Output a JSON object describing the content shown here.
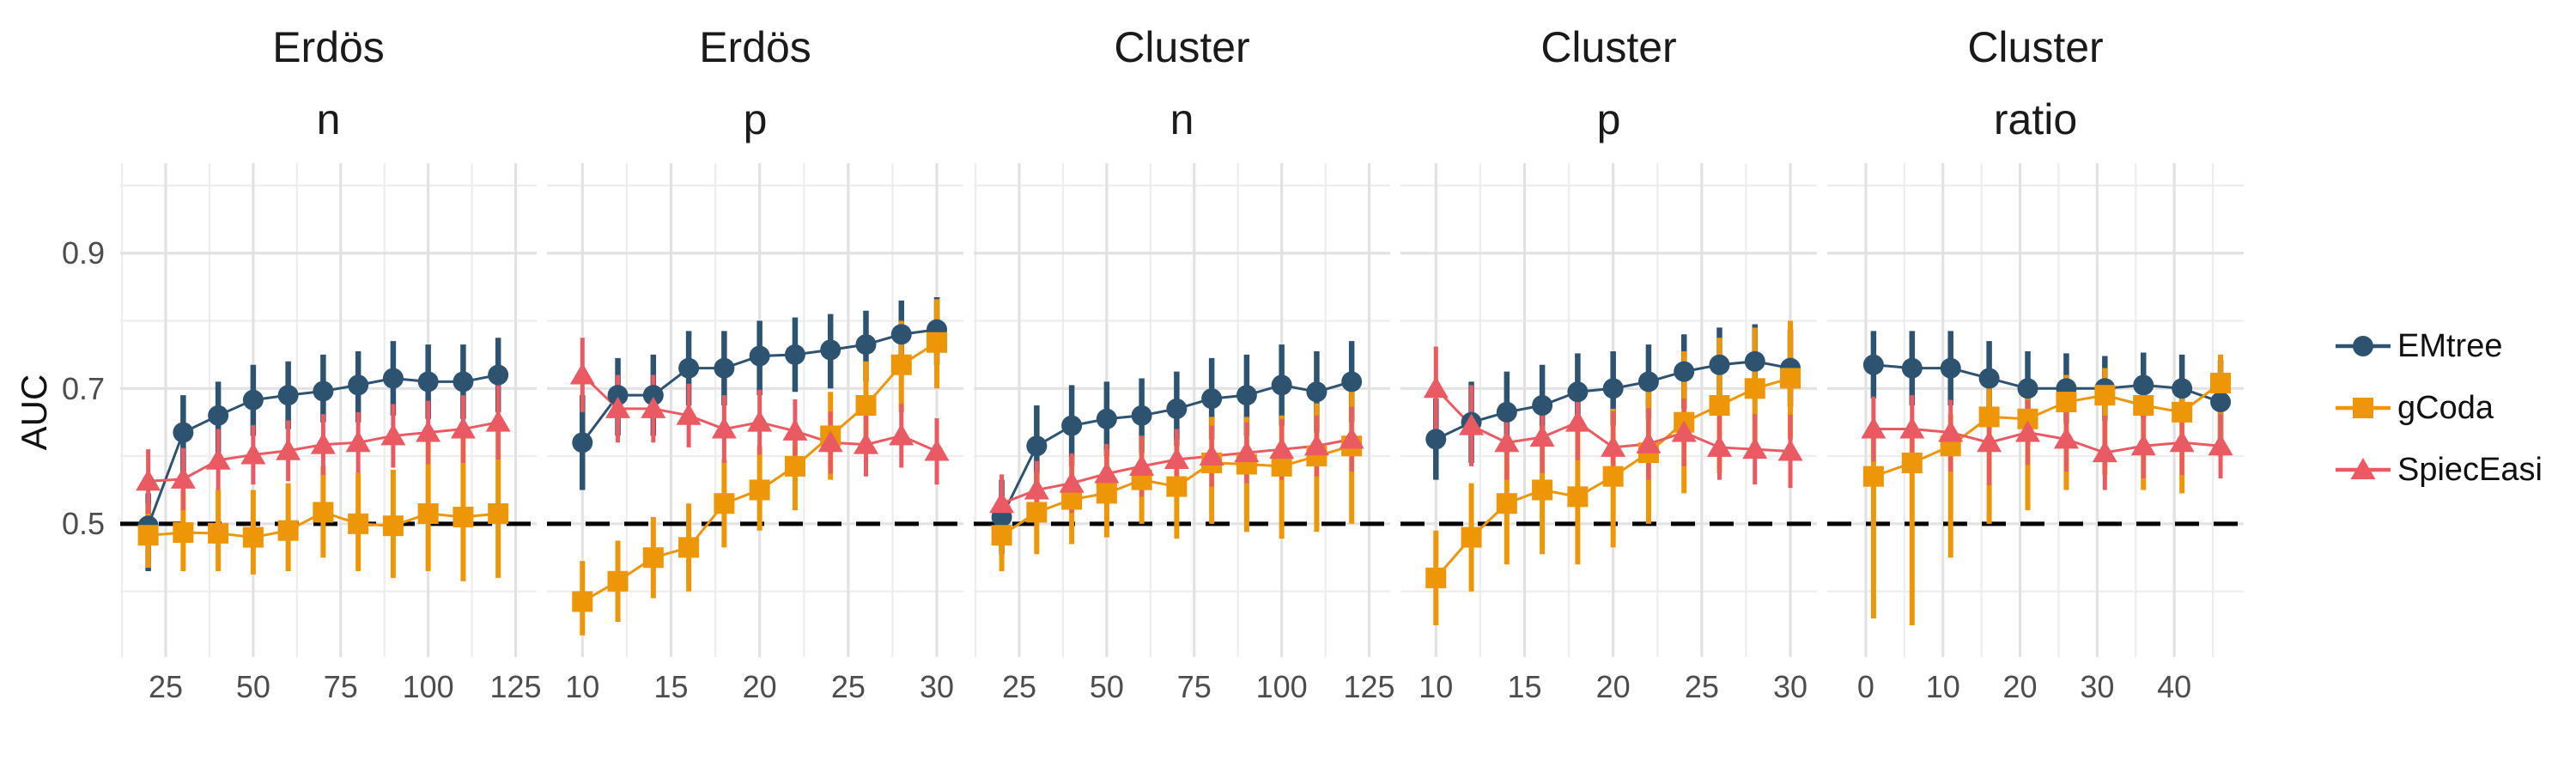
{
  "y_axis": {
    "label": "AUC",
    "tick_labels": [
      "0.9",
      "0.7",
      "0.5"
    ]
  },
  "legend": {
    "items": [
      {
        "label": "EMtree",
        "shape": "circle",
        "color": "#2E5370"
      },
      {
        "label": "gCoda",
        "shape": "square",
        "color": "#EC9608"
      },
      {
        "label": "SpiecEasi",
        "shape": "triangle",
        "color": "#EA5A62"
      }
    ]
  },
  "reference_line": {
    "value": 0.5,
    "style": "dashed",
    "color": "#000000"
  },
  "colors": {
    "emtree": "#2E5370",
    "gcoda": "#EC9608",
    "spieceasi": "#EA5A62",
    "grid_major": "#E2E2E2",
    "grid_minor": "#EDEDED",
    "tick_text": "#4D4D4D"
  },
  "chart_data": {
    "type": "line",
    "title": "",
    "xlabel": "",
    "ylabel": "AUC",
    "ylim": [
      0.303,
      1.033
    ],
    "grid": true,
    "legend_position": "right",
    "y_major_gridlines": [
      0.5,
      0.7,
      0.9
    ],
    "y_minor_gridlines": [
      0.4,
      0.6,
      0.8,
      1.0
    ],
    "panels": [
      {
        "title": "Erdös",
        "subtitle": "n",
        "xdomain": [
          12,
          131
        ],
        "xticks": [
          25,
          50,
          75,
          100,
          125
        ],
        "x_minor": [
          12.5,
          37.5,
          62.5,
          87.5,
          112.5
        ],
        "x": [
          20,
          30,
          40,
          50,
          60,
          70,
          80,
          90,
          100,
          110,
          120
        ],
        "series": [
          {
            "name": "EMtree",
            "values": [
              0.497,
              0.635,
              0.66,
              0.683,
              0.69,
              0.696,
              0.705,
              0.715,
              0.71,
              0.71,
              0.72
            ],
            "lo": [
              0.43,
              0.575,
              0.605,
              0.63,
              0.64,
              0.65,
              0.65,
              0.66,
              0.655,
              0.655,
              0.665
            ],
            "hi": [
              0.545,
              0.69,
              0.71,
              0.735,
              0.74,
              0.75,
              0.755,
              0.77,
              0.765,
              0.765,
              0.775
            ]
          },
          {
            "name": "gCoda",
            "values": [
              0.483,
              0.487,
              0.486,
              0.48,
              0.49,
              0.517,
              0.5,
              0.497,
              0.515,
              0.51,
              0.515
            ],
            "lo": [
              0.435,
              0.43,
              0.43,
              0.425,
              0.43,
              0.45,
              0.43,
              0.42,
              0.43,
              0.415,
              0.42
            ],
            "hi": [
              0.53,
              0.55,
              0.55,
              0.55,
              0.56,
              0.585,
              0.575,
              0.58,
              0.625,
              0.65,
              0.655
            ]
          },
          {
            "name": "SpiecEasi",
            "values": [
              0.563,
              0.566,
              0.594,
              0.602,
              0.608,
              0.617,
              0.62,
              0.63,
              0.635,
              0.64,
              0.65
            ],
            "lo": [
              0.515,
              0.52,
              0.55,
              0.558,
              0.563,
              0.572,
              0.575,
              0.583,
              0.588,
              0.59,
              0.595
            ],
            "hi": [
              0.61,
              0.612,
              0.64,
              0.646,
              0.653,
              0.662,
              0.665,
              0.677,
              0.682,
              0.69,
              0.705
            ]
          }
        ]
      },
      {
        "title": "Erdös",
        "subtitle": "p",
        "xdomain": [
          8,
          31.5
        ],
        "xticks": [
          10,
          15,
          20,
          25,
          30
        ],
        "x_minor": [
          12.5,
          17.5,
          22.5,
          27.5
        ],
        "x": [
          10,
          12,
          14,
          16,
          18,
          20,
          22,
          24,
          26,
          28,
          30
        ],
        "series": [
          {
            "name": "EMtree",
            "values": [
              0.62,
              0.69,
              0.69,
              0.73,
              0.73,
              0.748,
              0.75,
              0.757,
              0.765,
              0.78,
              0.787
            ],
            "lo": [
              0.55,
              0.63,
              0.63,
              0.675,
              0.675,
              0.69,
              0.695,
              0.7,
              0.71,
              0.725,
              0.735
            ],
            "hi": [
              0.69,
              0.745,
              0.75,
              0.785,
              0.785,
              0.8,
              0.805,
              0.81,
              0.815,
              0.83,
              0.835
            ]
          },
          {
            "name": "gCoda",
            "values": [
              0.385,
              0.415,
              0.45,
              0.465,
              0.53,
              0.55,
              0.585,
              0.63,
              0.675,
              0.735,
              0.768
            ],
            "lo": [
              0.335,
              0.355,
              0.39,
              0.4,
              0.465,
              0.49,
              0.52,
              0.565,
              0.605,
              0.665,
              0.7
            ],
            "hi": [
              0.445,
              0.475,
              0.51,
              0.53,
              0.595,
              0.615,
              0.65,
              0.695,
              0.74,
              0.8,
              0.832
            ]
          },
          {
            "name": "SpiecEasi",
            "values": [
              0.72,
              0.67,
              0.67,
              0.66,
              0.64,
              0.65,
              0.637,
              0.62,
              0.617,
              0.63,
              0.607
            ],
            "lo": [
              0.665,
              0.62,
              0.62,
              0.613,
              0.59,
              0.602,
              0.59,
              0.574,
              0.57,
              0.583,
              0.558
            ],
            "hi": [
              0.775,
              0.72,
              0.72,
              0.707,
              0.69,
              0.698,
              0.684,
              0.666,
              0.664,
              0.677,
              0.656
            ]
          }
        ]
      },
      {
        "title": "Cluster",
        "subtitle": "n",
        "xdomain": [
          12,
          131
        ],
        "xticks": [
          25,
          50,
          75,
          100,
          125
        ],
        "x_minor": [
          12.5,
          37.5,
          62.5,
          87.5,
          112.5
        ],
        "x": [
          20,
          30,
          40,
          50,
          60,
          70,
          80,
          90,
          100,
          110,
          120
        ],
        "series": [
          {
            "name": "EMtree",
            "values": [
              0.51,
              0.615,
              0.645,
              0.655,
              0.66,
              0.67,
              0.685,
              0.69,
              0.705,
              0.695,
              0.71
            ],
            "lo": [
              0.455,
              0.555,
              0.585,
              0.6,
              0.605,
              0.615,
              0.625,
              0.63,
              0.645,
              0.635,
              0.65
            ],
            "hi": [
              0.565,
              0.675,
              0.705,
              0.71,
              0.715,
              0.725,
              0.745,
              0.75,
              0.765,
              0.755,
              0.77
            ]
          },
          {
            "name": "gCoda",
            "values": [
              0.483,
              0.517,
              0.536,
              0.545,
              0.565,
              0.555,
              0.59,
              0.588,
              0.585,
              0.6,
              0.615
            ],
            "lo": [
              0.43,
              0.455,
              0.47,
              0.48,
              0.5,
              0.478,
              0.5,
              0.488,
              0.478,
              0.488,
              0.5
            ],
            "hi": [
              0.535,
              0.577,
              0.6,
              0.61,
              0.63,
              0.625,
              0.658,
              0.658,
              0.66,
              0.678,
              0.7
            ]
          },
          {
            "name": "SpiecEasi",
            "values": [
              0.53,
              0.55,
              0.56,
              0.574,
              0.585,
              0.595,
              0.6,
              0.605,
              0.61,
              0.615,
              0.625
            ],
            "lo": [
              0.487,
              0.507,
              0.516,
              0.53,
              0.54,
              0.55,
              0.555,
              0.56,
              0.565,
              0.57,
              0.577
            ],
            "hi": [
              0.573,
              0.593,
              0.604,
              0.618,
              0.63,
              0.64,
              0.645,
              0.65,
              0.655,
              0.66,
              0.673
            ]
          }
        ]
      },
      {
        "title": "Cluster",
        "subtitle": "p",
        "xdomain": [
          8,
          31.5
        ],
        "xticks": [
          10,
          15,
          20,
          25,
          30
        ],
        "x_minor": [
          12.5,
          17.5,
          22.5,
          27.5
        ],
        "x": [
          10,
          12,
          14,
          16,
          18,
          20,
          22,
          24,
          26,
          28,
          30
        ],
        "series": [
          {
            "name": "EMtree",
            "values": [
              0.625,
              0.65,
              0.665,
              0.675,
              0.695,
              0.7,
              0.71,
              0.725,
              0.735,
              0.74,
              0.73
            ],
            "lo": [
              0.565,
              0.59,
              0.605,
              0.615,
              0.638,
              0.645,
              0.655,
              0.67,
              0.68,
              0.685,
              0.673
            ],
            "hi": [
              0.685,
              0.71,
              0.725,
              0.735,
              0.752,
              0.755,
              0.765,
              0.78,
              0.79,
              0.795,
              0.787
            ]
          },
          {
            "name": "gCoda",
            "values": [
              0.42,
              0.48,
              0.53,
              0.55,
              0.54,
              0.57,
              0.605,
              0.65,
              0.675,
              0.7,
              0.715
            ],
            "lo": [
              0.35,
              0.4,
              0.44,
              0.455,
              0.44,
              0.465,
              0.5,
              0.545,
              0.575,
              0.61,
              0.625
            ],
            "hi": [
              0.49,
              0.56,
              0.615,
              0.645,
              0.64,
              0.67,
              0.71,
              0.755,
              0.775,
              0.79,
              0.8
            ]
          },
          {
            "name": "SpiecEasi",
            "values": [
              0.7,
              0.645,
              0.62,
              0.628,
              0.65,
              0.613,
              0.618,
              0.635,
              0.613,
              0.61,
              0.607
            ],
            "lo": [
              0.638,
              0.585,
              0.565,
              0.575,
              0.594,
              0.56,
              0.565,
              0.585,
              0.565,
              0.558,
              0.553
            ],
            "hi": [
              0.762,
              0.705,
              0.675,
              0.681,
              0.706,
              0.666,
              0.671,
              0.685,
              0.661,
              0.662,
              0.661
            ]
          }
        ]
      },
      {
        "title": "Cluster",
        "subtitle": "ratio",
        "xdomain": [
          -5,
          49
        ],
        "xticks": [
          0,
          10,
          20,
          30,
          40
        ],
        "x_minor": [
          5,
          15,
          25,
          35,
          45
        ],
        "x": [
          1,
          6,
          11,
          16,
          21,
          26,
          31,
          36,
          41,
          46
        ],
        "series": [
          {
            "name": "EMtree",
            "values": [
              0.735,
              0.73,
              0.73,
              0.715,
              0.7,
              0.7,
              0.7,
              0.705,
              0.7,
              0.68
            ],
            "lo": [
              0.685,
              0.675,
              0.675,
              0.66,
              0.645,
              0.648,
              0.652,
              0.657,
              0.65,
              0.618
            ],
            "hi": [
              0.785,
              0.785,
              0.785,
              0.77,
              0.755,
              0.752,
              0.748,
              0.753,
              0.75,
              0.742
            ]
          },
          {
            "name": "gCoda",
            "values": [
              0.57,
              0.59,
              0.615,
              0.658,
              0.655,
              0.68,
              0.69,
              0.675,
              0.665,
              0.708
            ],
            "lo": [
              0.36,
              0.35,
              0.45,
              0.5,
              0.52,
              0.55,
              0.572,
              0.55,
              0.545,
              0.6
            ],
            "hi": [
              0.63,
              0.645,
              0.662,
              0.7,
              0.7,
              0.72,
              0.73,
              0.72,
              0.71,
              0.75
            ]
          },
          {
            "name": "SpiecEasi",
            "values": [
              0.64,
              0.64,
              0.635,
              0.62,
              0.635,
              0.625,
              0.605,
              0.615,
              0.62,
              0.615
            ],
            "lo": [
              0.592,
              0.59,
              0.577,
              0.557,
              0.587,
              0.577,
              0.55,
              0.567,
              0.572,
              0.567
            ],
            "hi": [
              0.688,
              0.69,
              0.683,
              0.663,
              0.683,
              0.673,
              0.66,
              0.663,
              0.668,
              0.663
            ]
          }
        ]
      }
    ]
  }
}
